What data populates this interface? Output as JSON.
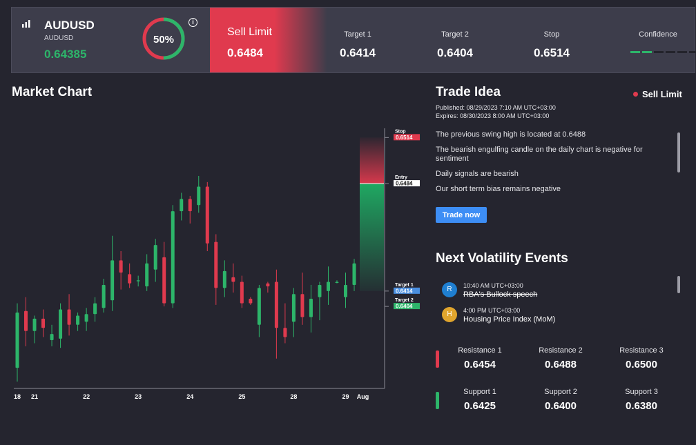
{
  "header": {
    "symbol": "AUDUSD",
    "symbol_sub": "AUDUSD",
    "price": "0.64385",
    "gauge_percent": 50,
    "gauge_label": "50%",
    "signal_label": "Sell Limit",
    "signal_value": "0.6484",
    "target1_label": "Target 1",
    "target1_value": "0.6414",
    "target2_label": "Target 2",
    "target2_value": "0.6404",
    "stop_label": "Stop",
    "stop_value": "0.6514",
    "confidence_label": "Confidence",
    "confidence_level": 2,
    "confidence_max": 6
  },
  "chart": {
    "title": "Market Chart",
    "x_ticks": [
      "18",
      "21",
      "22",
      "23",
      "24",
      "25",
      "28",
      "29",
      "Aug"
    ],
    "tags": {
      "stop_label": "Stop",
      "stop_value": "0.6514",
      "entry_label": "Entry",
      "entry_value": "0.6484",
      "target1_label": "Target 1",
      "target1_value": "0.6414",
      "target2_label": "Target 2",
      "target2_value": "0.6404"
    }
  },
  "chart_data": {
    "type": "candlestick",
    "x_labels": [
      "18",
      "21",
      "22",
      "23",
      "24",
      "25",
      "28",
      "29",
      "Aug"
    ],
    "levels": {
      "stop": 0.6514,
      "entry": 0.6484,
      "target1": 0.6414,
      "target2": 0.6404
    },
    "candles": [
      {
        "o": 0.6364,
        "h": 0.6406,
        "l": 0.6355,
        "c": 0.64
      },
      {
        "o": 0.6401,
        "h": 0.641,
        "l": 0.6378,
        "c": 0.6388
      },
      {
        "o": 0.6388,
        "h": 0.6398,
        "l": 0.638,
        "c": 0.6396
      },
      {
        "o": 0.6396,
        "h": 0.6402,
        "l": 0.6384,
        "c": 0.639
      },
      {
        "o": 0.6382,
        "h": 0.6392,
        "l": 0.6378,
        "c": 0.6386
      },
      {
        "o": 0.6383,
        "h": 0.6406,
        "l": 0.6377,
        "c": 0.6402
      },
      {
        "o": 0.6402,
        "h": 0.6412,
        "l": 0.6385,
        "c": 0.6392
      },
      {
        "o": 0.6392,
        "h": 0.64,
        "l": 0.6388,
        "c": 0.6398
      },
      {
        "o": 0.6394,
        "h": 0.6403,
        "l": 0.6388,
        "c": 0.6399
      },
      {
        "o": 0.6399,
        "h": 0.641,
        "l": 0.6394,
        "c": 0.6406
      },
      {
        "o": 0.6403,
        "h": 0.6422,
        "l": 0.64,
        "c": 0.6418
      },
      {
        "o": 0.6408,
        "h": 0.645,
        "l": 0.6401,
        "c": 0.6434
      },
      {
        "o": 0.6434,
        "h": 0.644,
        "l": 0.6415,
        "c": 0.6426
      },
      {
        "o": 0.6425,
        "h": 0.6432,
        "l": 0.6416,
        "c": 0.6419
      },
      {
        "o": 0.6421,
        "h": 0.6424,
        "l": 0.6417,
        "c": 0.6421
      },
      {
        "o": 0.6417,
        "h": 0.6438,
        "l": 0.6414,
        "c": 0.6432
      },
      {
        "o": 0.6428,
        "h": 0.6448,
        "l": 0.642,
        "c": 0.6444
      },
      {
        "o": 0.6436,
        "h": 0.6446,
        "l": 0.6404,
        "c": 0.6406
      },
      {
        "o": 0.6406,
        "h": 0.647,
        "l": 0.6403,
        "c": 0.6466
      },
      {
        "o": 0.6466,
        "h": 0.6478,
        "l": 0.646,
        "c": 0.6474
      },
      {
        "o": 0.6474,
        "h": 0.6476,
        "l": 0.6458,
        "c": 0.6466
      },
      {
        "o": 0.647,
        "h": 0.6489,
        "l": 0.6465,
        "c": 0.6482
      },
      {
        "o": 0.6482,
        "h": 0.6485,
        "l": 0.644,
        "c": 0.6445
      },
      {
        "o": 0.6446,
        "h": 0.6451,
        "l": 0.6405,
        "c": 0.6416
      },
      {
        "o": 0.6416,
        "h": 0.6434,
        "l": 0.641,
        "c": 0.6427
      },
      {
        "o": 0.6423,
        "h": 0.6432,
        "l": 0.6413,
        "c": 0.642
      },
      {
        "o": 0.642,
        "h": 0.6424,
        "l": 0.6403,
        "c": 0.6406
      },
      {
        "o": 0.6409,
        "h": 0.641,
        "l": 0.6405,
        "c": 0.6406
      },
      {
        "o": 0.6392,
        "h": 0.6418,
        "l": 0.6384,
        "c": 0.6416
      },
      {
        "o": 0.6419,
        "h": 0.642,
        "l": 0.6413,
        "c": 0.6417
      },
      {
        "o": 0.642,
        "h": 0.6428,
        "l": 0.637,
        "c": 0.639
      },
      {
        "o": 0.639,
        "h": 0.6406,
        "l": 0.638,
        "c": 0.6384
      },
      {
        "o": 0.6394,
        "h": 0.6416,
        "l": 0.6384,
        "c": 0.6412
      },
      {
        "o": 0.6412,
        "h": 0.6426,
        "l": 0.6392,
        "c": 0.6397
      },
      {
        "o": 0.6397,
        "h": 0.6418,
        "l": 0.6387,
        "c": 0.6409
      },
      {
        "o": 0.641,
        "h": 0.642,
        "l": 0.6395,
        "c": 0.6418
      },
      {
        "o": 0.6414,
        "h": 0.643,
        "l": 0.6405,
        "c": 0.642
      },
      {
        "o": 0.642,
        "h": 0.6421,
        "l": 0.6419,
        "c": 0.642
      },
      {
        "o": 0.641,
        "h": 0.6426,
        "l": 0.6403,
        "c": 0.6418
      },
      {
        "o": 0.6418,
        "h": 0.6435,
        "l": 0.6414,
        "c": 0.6432
      }
    ]
  },
  "trade_idea": {
    "title": "Trade Idea",
    "status": "Sell Limit",
    "published": "Published:  08/29/2023 7:10 AM UTC+03:00",
    "expires": "Expires:  08/30/2023 8:00 AM UTC+03:00",
    "points": [
      "The previous swing high is located at 0.6488",
      "The bearish engulfing candle on the daily chart is negative for sentiment",
      "Daily signals are bearish",
      "Our short term bias remains negative"
    ],
    "button_label": "Trade now"
  },
  "volatility": {
    "title": "Next Volatility Events",
    "events": [
      {
        "avatar": "R",
        "avatar_color": "#1f7fd1",
        "time": "10:40 AM UTC+03:00",
        "name": "RBA's Bullock speech",
        "past": true
      },
      {
        "avatar": "H",
        "avatar_color": "#e0a52d",
        "time": "4:00 PM UTC+03:00",
        "name": "Housing Price Index (MoM)",
        "past": false
      }
    ]
  },
  "levels": {
    "resistance": [
      {
        "label": "Resistance 1",
        "value": "0.6454"
      },
      {
        "label": "Resistance 2",
        "value": "0.6488"
      },
      {
        "label": "Resistance 3",
        "value": "0.6500"
      }
    ],
    "support": [
      {
        "label": "Support 1",
        "value": "0.6425"
      },
      {
        "label": "Support 2",
        "value": "0.6400"
      },
      {
        "label": "Support 3",
        "value": "0.6380"
      }
    ]
  },
  "colors": {
    "bull": "#2db56a",
    "bear": "#e03a4e",
    "accent": "#3d8ef5",
    "target": "#4a8fe0"
  }
}
